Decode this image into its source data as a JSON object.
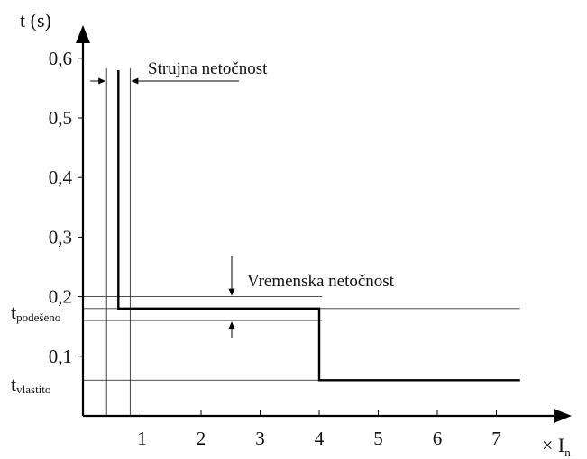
{
  "chart_data": {
    "type": "line",
    "title": "",
    "ylabel": "t (s)",
    "xlabel": "× I",
    "xlabel_subscript": "n",
    "xlim": [
      0,
      8
    ],
    "ylim": [
      0,
      0.6
    ],
    "xticks": [
      1,
      2,
      3,
      4,
      5,
      6,
      7
    ],
    "xtick_labels": [
      "1",
      "2",
      "3",
      "4",
      "5",
      "6",
      "7"
    ],
    "yticks": [
      0.1,
      0.2,
      0.3,
      0.4,
      0.5,
      0.6
    ],
    "ytick_labels": [
      "0,1",
      "0,2",
      "0,3",
      "0,4",
      "0,5",
      "0,6"
    ],
    "grid": false,
    "series": [
      {
        "x": [
          0.6,
          0.6,
          4.0,
          4.0,
          7.4
        ],
        "y": [
          0.58,
          0.18,
          0.18,
          0.06,
          0.06
        ]
      }
    ],
    "current_tolerance_lines_x": [
      0.4,
      0.8
    ],
    "time_tolerance_lines_y": [
      0.2,
      0.16
    ],
    "reference_lines_y": [
      {
        "y": 0.18,
        "label": "t",
        "subscript": "podešeno"
      },
      {
        "y": 0.06,
        "label": "t",
        "subscript": "vlastito"
      }
    ],
    "annotations": [
      {
        "text": "Strujna netočnost",
        "x": 0.6,
        "y": 0.56
      },
      {
        "text": "Vremenska netočnost",
        "x": 2.5,
        "y": 0.18
      }
    ]
  }
}
